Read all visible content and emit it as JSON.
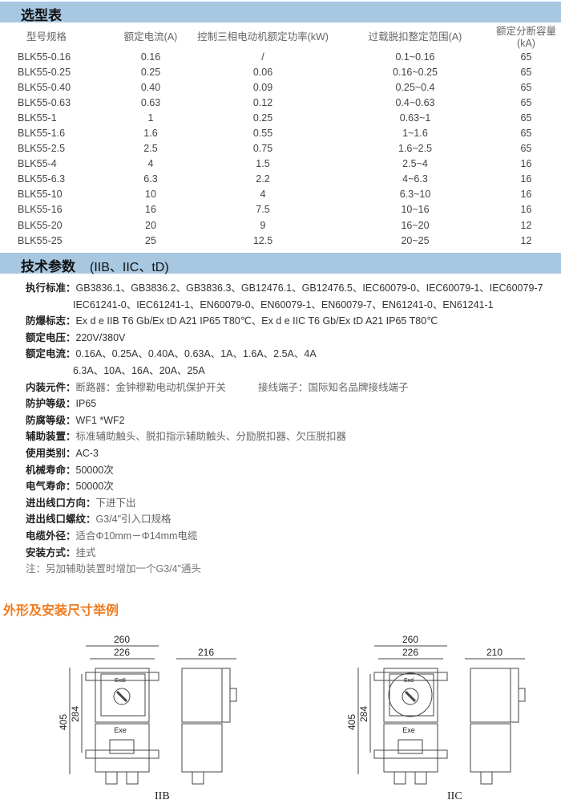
{
  "selection": {
    "title": "选型表",
    "headers": [
      "型号规格",
      "额定电流(A)",
      "控制三相电动机额定功率(kW)",
      "过载脱扣整定范围(A)",
      "额定分断容量(kA)"
    ],
    "rows": [
      [
        "BLK55-0.16",
        "0.16",
        "/",
        "0.1~0.16",
        "65"
      ],
      [
        "BLK55-0.25",
        "0.25",
        "0.06",
        "0.16~0.25",
        "65"
      ],
      [
        "BLK55-0.40",
        "0.40",
        "0.09",
        "0.25~0.4",
        "65"
      ],
      [
        "BLK55-0.63",
        "0.63",
        "0.12",
        "0.4~0.63",
        "65"
      ],
      [
        "BLK55-1",
        "1",
        "0.25",
        "0.63~1",
        "65"
      ],
      [
        "BLK55-1.6",
        "1.6",
        "0.55",
        "1~1.6",
        "65"
      ],
      [
        "BLK55-2.5",
        "2.5",
        "0.75",
        "1.6~2.5",
        "65"
      ],
      [
        "BLK55-4",
        "4",
        "1.5",
        "2.5~4",
        "16"
      ],
      [
        "BLK55-6.3",
        "6.3",
        "2.2",
        "4~6.3",
        "16"
      ],
      [
        "BLK55-10",
        "10",
        "4",
        "6.3~10",
        "16"
      ],
      [
        "BLK55-16",
        "16",
        "7.5",
        "10~16",
        "16"
      ],
      [
        "BLK55-20",
        "20",
        "9",
        "16~20",
        "12"
      ],
      [
        "BLK55-25",
        "25",
        "12.5",
        "20~25",
        "12"
      ]
    ]
  },
  "tech": {
    "title": "技术参数",
    "subtitle": "(IIB、IIC、tD)",
    "params": [
      {
        "label": "执行标准：",
        "value": "GB3836.1、GB3836.2、GB3836.3、GB12476.1、GB12476.5、IEC60079-0、IEC60079-1、IEC60079-7",
        "cont": "IEC61241-0、IEC61241-1、EN60079-0、EN60079-1、EN60079-7、EN61241-0、EN61241-1"
      },
      {
        "label": "防爆标志：",
        "value": "Ex d e IIB T6 Gb/Ex tD A21 IP65 T80℃、Ex d e IIC T6 Gb/Ex tD A21 IP65 T80℃"
      },
      {
        "label": "额定电压：",
        "value": "220V/380V"
      },
      {
        "label": "额定电流：",
        "value": "0.16A、0.25A、0.40A、0.63A、1A、1.6A、2.5A、4A",
        "cont": "6.3A、10A、16A、20A、25A"
      },
      {
        "label": "内装元件：",
        "value": "断路器：金钟穆勒电动机保护开关",
        "value2": "接线端子：国际知名品牌接线端子"
      },
      {
        "label": "防护等级：",
        "value": "IP65"
      },
      {
        "label": "防腐等级：",
        "value": "WF1   *WF2"
      },
      {
        "label": "辅助装置：",
        "value": "标准辅助触头、脱扣指示辅助触头、分励脱扣器、欠压脱扣器"
      },
      {
        "label": "使用类别：",
        "value": "AC-3"
      },
      {
        "label": "机械寿命：",
        "value": "50000次"
      },
      {
        "label": "电气寿命：",
        "value": "50000次"
      },
      {
        "label": "进出线口方向：",
        "value": "下进下出"
      },
      {
        "label": "进出线口螺纹：",
        "value": "G3/4\"引入口规格"
      },
      {
        "label": "电缆外径：",
        "value": "适合Φ10mm－Φ14mm电缆"
      },
      {
        "label": "安装方式：",
        "value": "挂式"
      }
    ],
    "note": "注：另加辅助装置时增加一个G3/4\"通头"
  },
  "outline": {
    "title": "外形及安装尺寸举例",
    "iib": {
      "w_outer": "260",
      "w_inner": "226",
      "depth": "216",
      "h_outer": "405",
      "h_inner": "284",
      "top_label": "ExdI",
      "bottom_label": "Exe",
      "caption": "IIB"
    },
    "iic": {
      "w_outer": "260",
      "w_inner": "226",
      "depth": "210",
      "h_outer": "405",
      "h_inner": "284",
      "top_label": "Exd",
      "bottom_label": "Exe",
      "caption": "IIC"
    }
  },
  "colors": {
    "header_bar": "#a8c8e2",
    "outline_title": "#f07a1e"
  }
}
